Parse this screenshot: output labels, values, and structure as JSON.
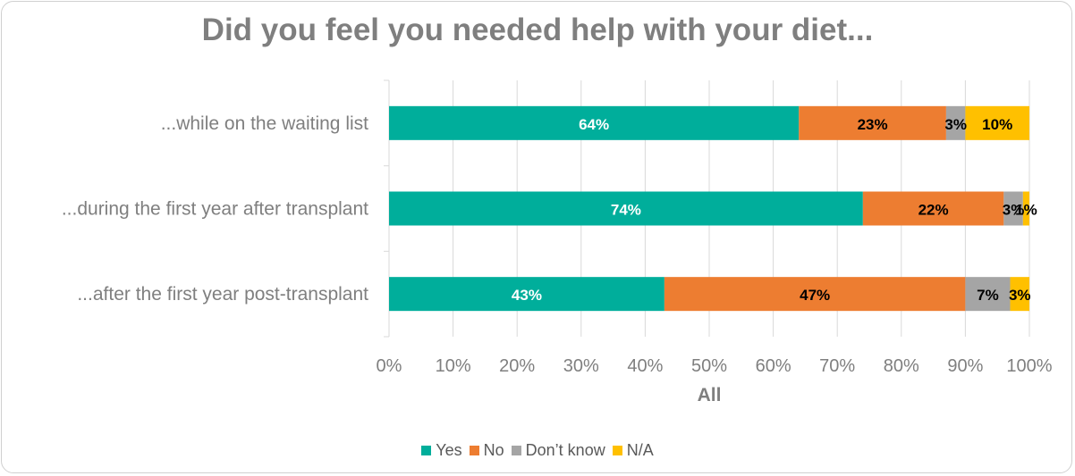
{
  "chart_data": {
    "type": "bar",
    "orientation": "horizontal",
    "stacked": true,
    "title": "Did you feel you needed help with your diet...",
    "xlabel": "All",
    "xlim": [
      0,
      100
    ],
    "x_ticks": [
      "0%",
      "10%",
      "20%",
      "30%",
      "40%",
      "50%",
      "60%",
      "70%",
      "80%",
      "90%",
      "100%"
    ],
    "categories": [
      "...while on the waiting list",
      "...during the first year after transplant",
      "...after the first year post-transplant"
    ],
    "series": [
      {
        "name": "Yes",
        "color": "#00ae9b",
        "label_color": "#ffffff",
        "values": [
          64,
          74,
          43
        ],
        "labels": [
          "64%",
          "74%",
          "43%"
        ]
      },
      {
        "name": "No",
        "color": "#ed7d31",
        "label_color": "#000000",
        "values": [
          23,
          22,
          47
        ],
        "labels": [
          "23%",
          "22%",
          "47%"
        ]
      },
      {
        "name": "Don’t know",
        "color": "#a5a5a5",
        "label_color": "#000000",
        "values": [
          3,
          3,
          7
        ],
        "labels": [
          "3%",
          "3%",
          "7%"
        ]
      },
      {
        "name": "N/A",
        "color": "#ffc000",
        "label_color": "#000000",
        "values": [
          10,
          1,
          3
        ],
        "labels": [
          "10%",
          "1%",
          "3%"
        ]
      }
    ],
    "grid": true,
    "legend_position": "bottom"
  }
}
